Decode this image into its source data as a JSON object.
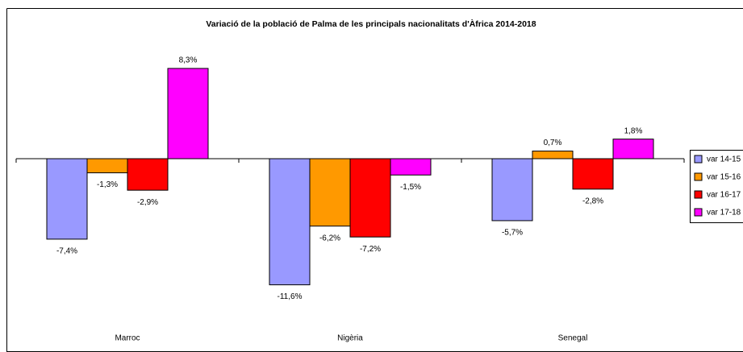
{
  "chart_data": {
    "type": "bar",
    "title": "Variació de la població de Palma de les principals nacionalitats d'Àfrica 2014-2018",
    "categories": [
      "Marroc",
      "Nigèria",
      "Senegal"
    ],
    "series": [
      {
        "name": "var 14-15",
        "color": "#9999ff",
        "values": [
          -7.4,
          -11.6,
          -5.7
        ],
        "value_labels": [
          "-7,4%",
          "-11,6%",
          "-5,7%"
        ]
      },
      {
        "name": "var 15-16",
        "color": "#ff9900",
        "values": [
          -1.3,
          -6.2,
          0.7
        ],
        "value_labels": [
          "-1,3%",
          "-6,2%",
          "0,7%"
        ]
      },
      {
        "name": "var 16-17",
        "color": "#ff0000",
        "values": [
          -2.9,
          -7.2,
          -2.8
        ],
        "value_labels": [
          "-2,9%",
          "-7,2%",
          "-2,8%"
        ]
      },
      {
        "name": "var 17-18",
        "color": "#ff00ff",
        "values": [
          8.3,
          -1.5,
          1.8
        ],
        "value_labels": [
          "8,3%",
          "-1,5%",
          "1,8%"
        ]
      }
    ],
    "ylim": [
      -14,
      10
    ],
    "legend": "right"
  }
}
